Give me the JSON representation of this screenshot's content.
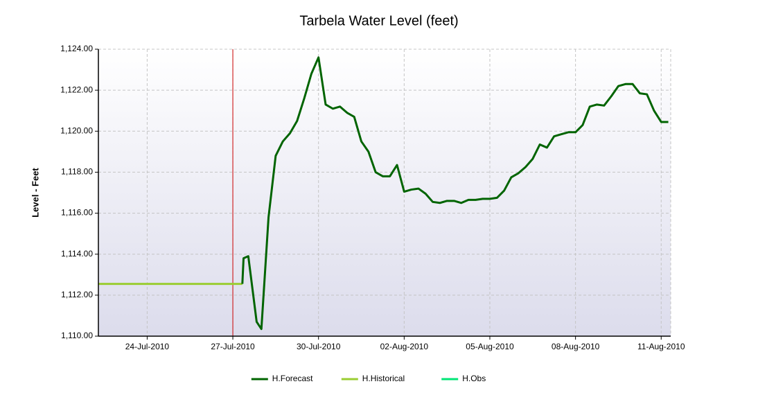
{
  "chart_data": {
    "type": "line",
    "title": "Tarbela Water Level (feet)",
    "y_label": "Level - Feet",
    "xlim": [
      "2010-07-22T07:00",
      "2010-08-11T08:00"
    ],
    "xticks": [
      {
        "value": "2010-07-24T00:00",
        "label": "24-Jul-2010"
      },
      {
        "value": "2010-07-27T00:00",
        "label": "27-Jul-2010"
      },
      {
        "value": "2010-07-30T00:00",
        "label": "30-Jul-2010"
      },
      {
        "value": "2010-08-02T00:00",
        "label": "02-Aug-2010"
      },
      {
        "value": "2010-08-05T00:00",
        "label": "05-Aug-2010"
      },
      {
        "value": "2010-08-08T00:00",
        "label": "08-Aug-2010"
      },
      {
        "value": "2010-08-11T00:00",
        "label": "11-Aug-2010"
      }
    ],
    "ylim": [
      1110,
      1124
    ],
    "yticks": [
      {
        "value": 1110,
        "label": "1,110.00"
      },
      {
        "value": 1112,
        "label": "1,112.00"
      },
      {
        "value": 1114,
        "label": "1,114.00"
      },
      {
        "value": 1116,
        "label": "1,116.00"
      },
      {
        "value": 1118,
        "label": "1,118.00"
      },
      {
        "value": 1120,
        "label": "1,120.00"
      },
      {
        "value": 1122,
        "label": "1,122.00"
      },
      {
        "value": 1124,
        "label": "1,124.00"
      }
    ],
    "grid": true,
    "legend": "bottom",
    "marker_line": {
      "x": "2010-07-27T00:00",
      "color": "#cc0000"
    },
    "series": [
      {
        "name": "H.Forecast",
        "color": "#006400",
        "x": [
          "2010-07-27T08:00",
          "2010-07-27T09:00",
          "2010-07-27T13:00",
          "2010-07-27T20:00",
          "2010-07-28T00:00",
          "2010-07-28T06:00",
          "2010-07-28T12:00",
          "2010-07-28T18:00",
          "2010-07-29T00:00",
          "2010-07-29T06:00",
          "2010-07-29T12:00",
          "2010-07-29T18:00",
          "2010-07-30T00:00",
          "2010-07-30T06:00",
          "2010-07-30T12:00",
          "2010-07-30T18:00",
          "2010-07-31T00:00",
          "2010-07-31T06:00",
          "2010-07-31T12:00",
          "2010-07-31T18:00",
          "2010-08-01T00:00",
          "2010-08-01T06:00",
          "2010-08-01T12:00",
          "2010-08-01T18:00",
          "2010-08-02T00:00",
          "2010-08-02T06:00",
          "2010-08-02T12:00",
          "2010-08-02T18:00",
          "2010-08-03T00:00",
          "2010-08-03T06:00",
          "2010-08-03T12:00",
          "2010-08-03T18:00",
          "2010-08-04T00:00",
          "2010-08-04T06:00",
          "2010-08-04T12:00",
          "2010-08-04T18:00",
          "2010-08-05T00:00",
          "2010-08-05T06:00",
          "2010-08-05T12:00",
          "2010-08-05T18:00",
          "2010-08-06T00:00",
          "2010-08-06T06:00",
          "2010-08-06T12:00",
          "2010-08-06T18:00",
          "2010-08-07T00:00",
          "2010-08-07T06:00",
          "2010-08-07T12:00",
          "2010-08-07T18:00",
          "2010-08-08T00:00",
          "2010-08-08T06:00",
          "2010-08-08T12:00",
          "2010-08-08T18:00",
          "2010-08-09T00:00",
          "2010-08-09T06:00",
          "2010-08-09T12:00",
          "2010-08-09T18:00",
          "2010-08-10T00:00",
          "2010-08-10T06:00",
          "2010-08-10T12:00",
          "2010-08-10T18:00",
          "2010-08-11T00:00",
          "2010-08-11T06:00"
        ],
        "values": [
          1112.55,
          1113.8,
          1113.9,
          1110.7,
          1110.35,
          1115.8,
          1118.8,
          1119.5,
          1119.9,
          1120.5,
          1121.6,
          1122.8,
          1123.6,
          1121.3,
          1121.1,
          1121.2,
          1120.9,
          1120.7,
          1119.5,
          1119.0,
          1118.0,
          1117.8,
          1117.8,
          1118.35,
          1117.05,
          1117.15,
          1117.2,
          1116.95,
          1116.55,
          1116.5,
          1116.6,
          1116.6,
          1116.5,
          1116.65,
          1116.65,
          1116.7,
          1116.7,
          1116.75,
          1117.1,
          1117.75,
          1117.95,
          1118.25,
          1118.65,
          1119.35,
          1119.2,
          1119.75,
          1119.85,
          1119.95,
          1119.95,
          1120.3,
          1121.2,
          1121.3,
          1121.25,
          1121.7,
          1122.2,
          1122.3,
          1122.3,
          1121.85,
          1121.8,
          1121.0,
          1120.45,
          1120.45
        ]
      },
      {
        "name": "H.Historical",
        "color": "#9acd32",
        "x": [
          "2010-07-22T07:00",
          "2010-07-27T08:00"
        ],
        "values": [
          1112.55,
          1112.55
        ]
      },
      {
        "name": "H.Obs",
        "color": "#00e676",
        "x": [],
        "values": []
      }
    ]
  }
}
